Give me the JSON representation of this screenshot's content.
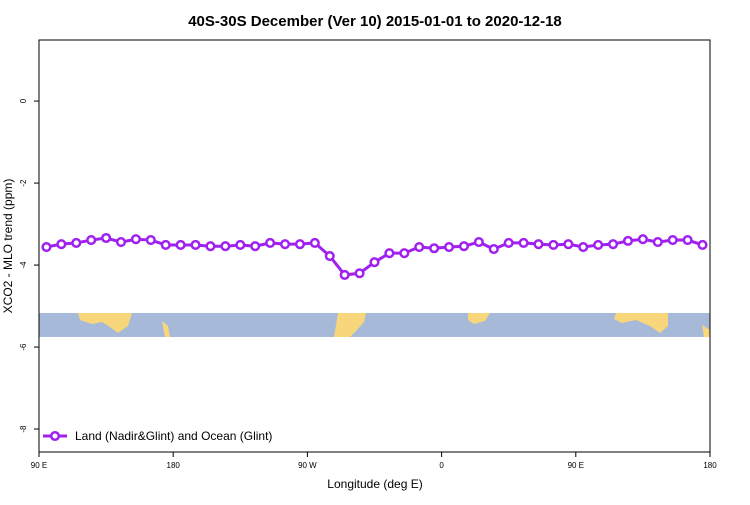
{
  "chart_data": {
    "type": "line",
    "title": "40S-30S December (Ver 10)   2015-01-01 to 2020-12-18",
    "x_label": "Longitude (deg E)",
    "y_label": "XCO2 - MLO trend (ppm)",
    "x": [
      95,
      105,
      115,
      125,
      135,
      145,
      155,
      165,
      175,
      185,
      195,
      205,
      215,
      225,
      235,
      245,
      255,
      265,
      275,
      285,
      295,
      305,
      315,
      325,
      335,
      345,
      355,
      365,
      375,
      385,
      395,
      405,
      415,
      425,
      435,
      445,
      455,
      465,
      475,
      485,
      495,
      505,
      515,
      525,
      535
    ],
    "series": [
      {
        "name": "Land (Nadir&Glint) and Ocean (Glint)",
        "color": "#a020f0",
        "values": [
          -3.56,
          -3.49,
          -3.46,
          -3.39,
          -3.34,
          -3.44,
          -3.37,
          -3.39,
          -3.51,
          -3.51,
          -3.51,
          -3.54,
          -3.54,
          -3.51,
          -3.54,
          -3.46,
          -3.49,
          -3.49,
          -3.46,
          -3.78,
          -4.24,
          -4.2,
          -3.93,
          -3.71,
          -3.71,
          -3.56,
          -3.59,
          -3.56,
          -3.54,
          -3.44,
          -3.61,
          -3.46,
          -3.46,
          -3.49,
          -3.51,
          -3.49,
          -3.56,
          -3.51,
          -3.49,
          -3.41,
          -3.37,
          -3.44,
          -3.39,
          -3.39,
          -3.51
        ]
      }
    ],
    "xlim": [
      90,
      540
    ],
    "xticks": [
      {
        "value": 90,
        "label": "90 E"
      },
      {
        "value": 180,
        "label": "180"
      },
      {
        "value": 270,
        "label": "90 W"
      },
      {
        "value": 360,
        "label": "0"
      },
      {
        "value": 450,
        "label": "90 E"
      },
      {
        "value": 540,
        "label": "180"
      }
    ],
    "ylim": [
      -8.56,
      1.49
    ],
    "yticks": [
      0,
      -2,
      -4,
      -6,
      -8
    ],
    "legend": "bottom-left"
  }
}
